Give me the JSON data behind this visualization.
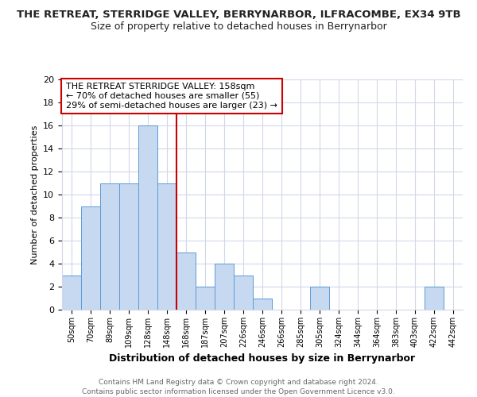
{
  "title": "THE RETREAT, STERRIDGE VALLEY, BERRYNARBOR, ILFRACOMBE, EX34 9TB",
  "subtitle": "Size of property relative to detached houses in Berrynarbor",
  "xlabel": "Distribution of detached houses by size in Berrynarbor",
  "ylabel": "Number of detached properties",
  "categories": [
    "50sqm",
    "70sqm",
    "89sqm",
    "109sqm",
    "128sqm",
    "148sqm",
    "168sqm",
    "187sqm",
    "207sqm",
    "226sqm",
    "246sqm",
    "266sqm",
    "285sqm",
    "305sqm",
    "324sqm",
    "344sqm",
    "364sqm",
    "383sqm",
    "403sqm",
    "422sqm",
    "442sqm"
  ],
  "values": [
    3,
    9,
    11,
    11,
    16,
    11,
    5,
    2,
    4,
    3,
    1,
    0,
    0,
    2,
    0,
    0,
    0,
    0,
    0,
    2,
    0
  ],
  "bar_color": "#c6d9f0",
  "bar_edge_color": "#5b9bd5",
  "red_line_x": 5.5,
  "red_line_color": "#cc0000",
  "ylim": [
    0,
    20
  ],
  "yticks": [
    0,
    2,
    4,
    6,
    8,
    10,
    12,
    14,
    16,
    18,
    20
  ],
  "annotation_title": "THE RETREAT STERRIDGE VALLEY: 158sqm",
  "annotation_line1": "← 70% of detached houses are smaller (55)",
  "annotation_line2": "29% of semi-detached houses are larger (23) →",
  "annotation_box_color": "#ffffff",
  "annotation_box_edge": "#cc0000",
  "footer_line1": "Contains HM Land Registry data © Crown copyright and database right 2024.",
  "footer_line2": "Contains public sector information licensed under the Open Government Licence v3.0.",
  "background_color": "#ffffff",
  "grid_color": "#d0d8e8"
}
